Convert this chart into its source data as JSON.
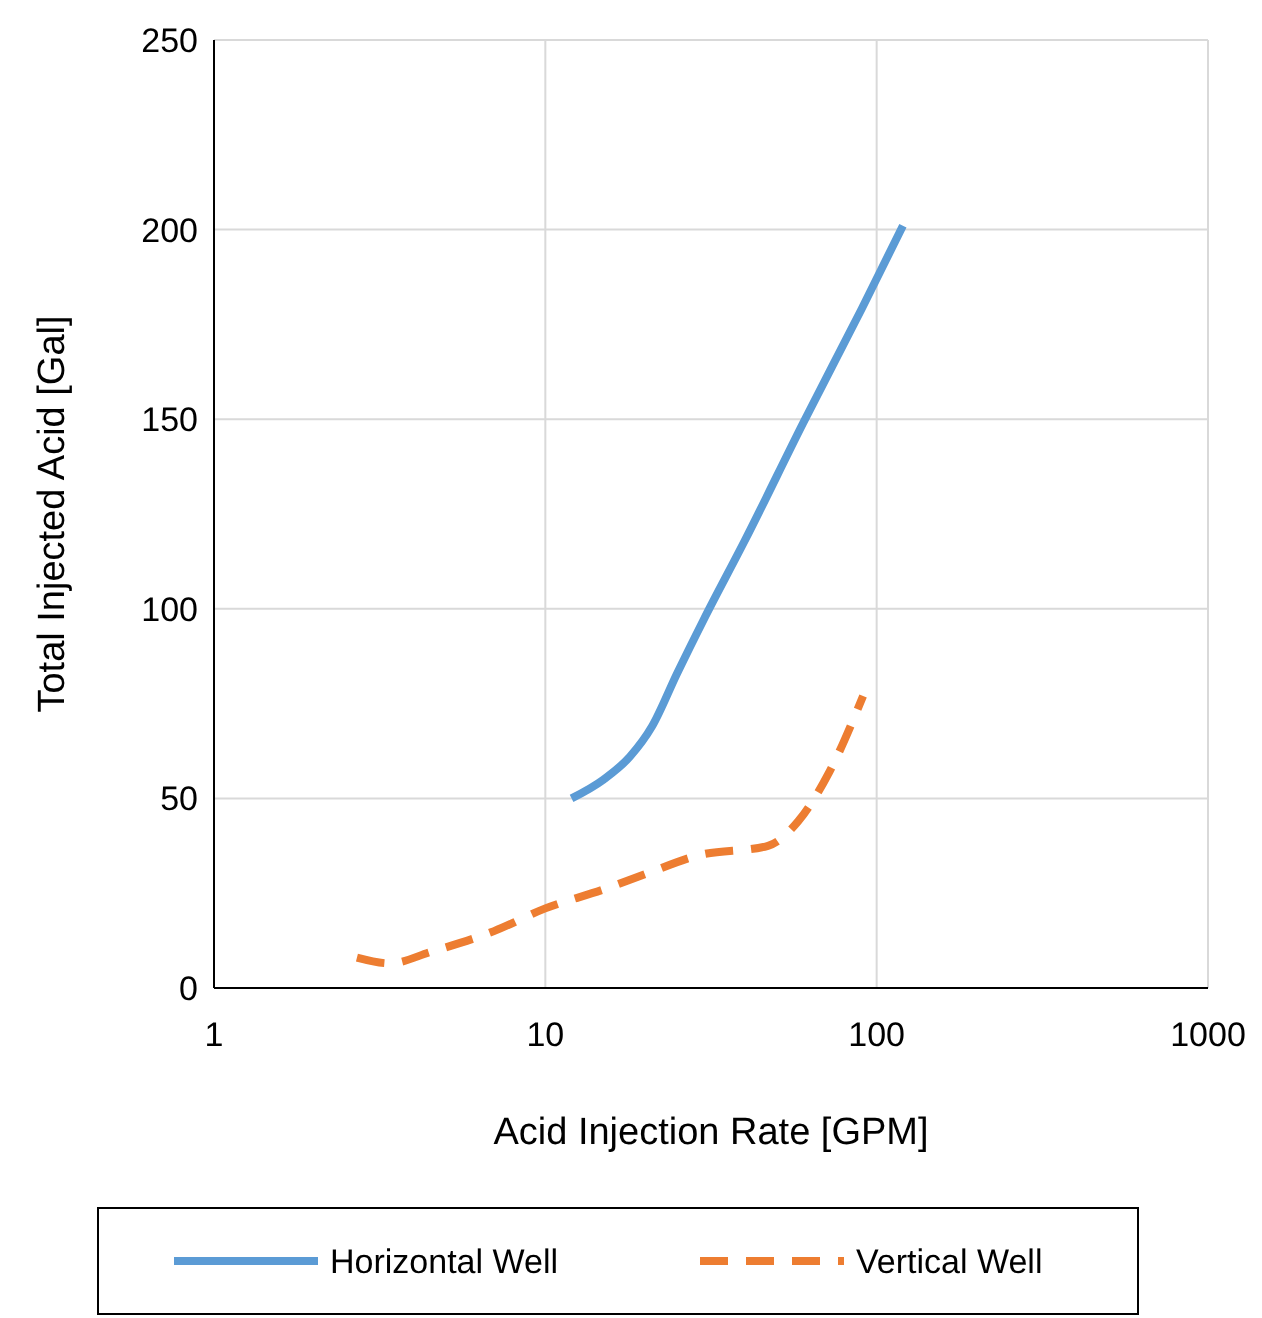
{
  "chart_data": {
    "type": "line",
    "xlabel": "Acid Injection Rate [GPM]",
    "ylabel": "Total Injected Acid [Gal]",
    "log": "x",
    "xlim": [
      1,
      1000
    ],
    "xticks": [
      1,
      10,
      100,
      1000
    ],
    "ylim": [
      0,
      250
    ],
    "yticks": [
      0,
      50,
      100,
      150,
      200,
      250
    ],
    "grid": true,
    "legend": "bottom",
    "marker": "none",
    "series": [
      {
        "name": "Horizontal Well",
        "color": "#5b9bd5",
        "line_style": "solid",
        "x": [
          12,
          15,
          18,
          21,
          25,
          30,
          40,
          60,
          90,
          120
        ],
        "values": [
          50,
          55,
          61,
          69,
          83,
          97,
          118,
          149,
          179,
          201
        ]
      },
      {
        "name": "Vertical Well",
        "color": "#ed7d31",
        "line_style": "dashed",
        "x": [
          2.7,
          3.4,
          4.5,
          7,
          10,
          15,
          20,
          29,
          47,
          58,
          72,
          91
        ],
        "values": [
          8,
          6.5,
          9.5,
          15,
          21,
          26,
          30,
          35,
          37.5,
          44,
          57,
          77
        ]
      }
    ]
  }
}
